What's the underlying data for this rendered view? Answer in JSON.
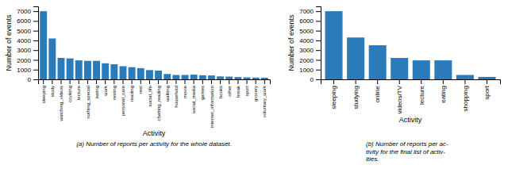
{
  "chart_data": [
    {
      "type": "bar",
      "categories": [
        "sleeping",
        "study",
        "watching_videos",
        "cooking",
        "lecture",
        "nothing_special",
        "eating",
        "work",
        "resting",
        "personal_care",
        "reading",
        "rest",
        "social_life",
        "chatting_reading",
        "walking",
        "household",
        "movie",
        "social_media",
        "games",
        "internet_information",
        "books",
        "other",
        "break",
        "sport",
        "grocery",
        "voluntary_work"
      ],
      "values": [
        7000,
        4200,
        2200,
        2150,
        1950,
        1900,
        1900,
        1650,
        1550,
        1350,
        1250,
        1150,
        950,
        900,
        550,
        450,
        450,
        480,
        420,
        400,
        300,
        280,
        230,
        200,
        180,
        170
      ],
      "color": "#2b7bba",
      "ylabel": "Number of events",
      "xlabel": "Activity",
      "ylim": [
        0,
        7500
      ],
      "yticks": [
        0,
        1000,
        2000,
        3000,
        4000,
        5000,
        6000,
        7000
      ],
      "caption": "(a) Number of reports per activity for the whole dataset."
    },
    {
      "type": "bar",
      "categories": [
        "sleeping",
        "studying",
        "online",
        "videos/TV",
        "lecture",
        "eating",
        "shopping",
        "sport"
      ],
      "values": [
        7000,
        4300,
        3500,
        2200,
        1950,
        1950,
        450,
        250
      ],
      "color": "#2b7bba",
      "ylabel": "Number of events",
      "xlabel": "Activity",
      "ylim": [
        0,
        7500
      ],
      "yticks": [
        0,
        1000,
        2000,
        3000,
        4000,
        5000,
        6000,
        7000
      ],
      "caption": "(b) Number of reports per ac-\ntivity for the final list of activ-\nities."
    }
  ]
}
